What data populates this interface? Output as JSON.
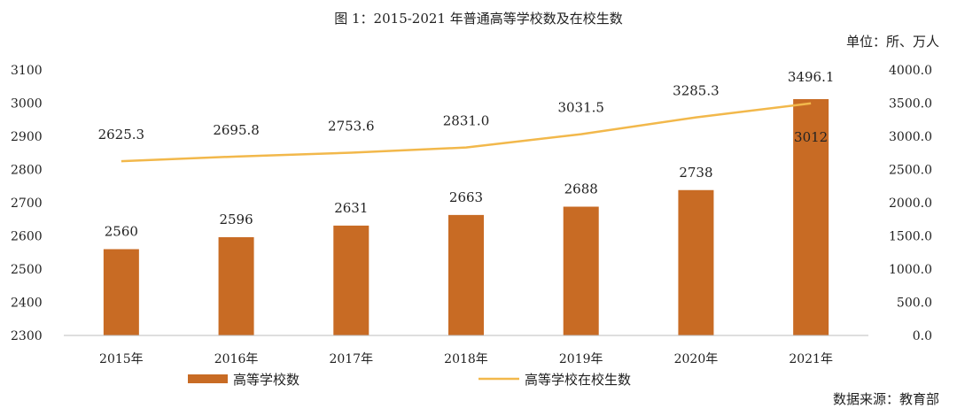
{
  "chart_data": {
    "type": "bar+line",
    "title": "图 1：2015-2021 年普通高等学校数及在校生数",
    "unit": "单位：所、万人",
    "source": "数据来源：教育部",
    "categories": [
      "2015年",
      "2016年",
      "2017年",
      "2018年",
      "2019年",
      "2020年",
      "2021年"
    ],
    "series": [
      {
        "name": "高等学校数",
        "kind": "bar",
        "axis": "left",
        "values": [
          2560,
          2596,
          2631,
          2663,
          2688,
          2738,
          3012
        ],
        "labels": [
          "2560",
          "2596",
          "2631",
          "2663",
          "2688",
          "2738",
          "3012"
        ],
        "color": "#C86B24"
      },
      {
        "name": "高等学校在校生数",
        "kind": "line",
        "axis": "right",
        "values": [
          2625.3,
          2695.8,
          2753.6,
          2831.0,
          3031.5,
          3285.3,
          3496.1
        ],
        "labels": [
          "2625.3",
          "2695.8",
          "2753.6",
          "2831.0",
          "3031.5",
          "3285.3",
          "3496.1"
        ],
        "color": "#F2B84B"
      }
    ],
    "left_axis": {
      "min": 2300,
      "max": 3100,
      "step": 100,
      "ticks": [
        "2300",
        "2400",
        "2500",
        "2600",
        "2700",
        "2800",
        "2900",
        "3000",
        "3100"
      ]
    },
    "right_axis": {
      "min": 0,
      "max": 4000,
      "step": 500,
      "ticks": [
        "0.0",
        "500.0",
        "1000.0",
        "1500.0",
        "2000.0",
        "2500.0",
        "3000.0",
        "3500.0",
        "4000.0"
      ]
    },
    "grid": false,
    "legend_position": "bottom"
  }
}
